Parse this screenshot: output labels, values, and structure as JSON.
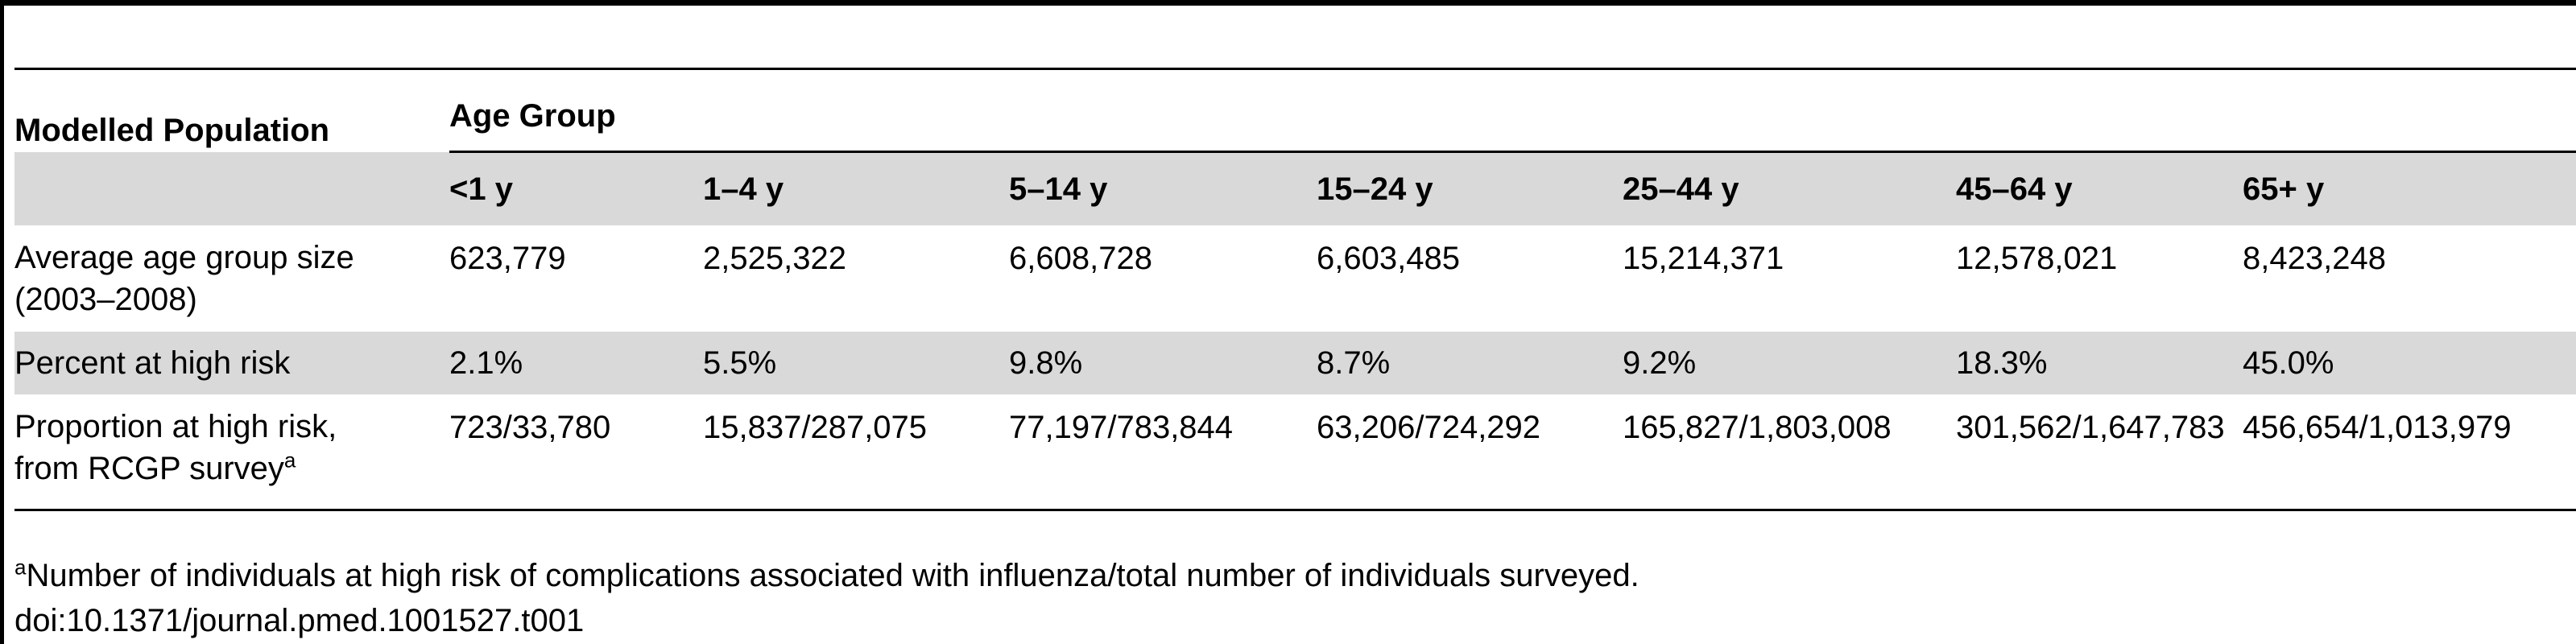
{
  "table": {
    "corner_label": "Modelled Population",
    "group_label": "Age Group",
    "age_groups": [
      "<1 y",
      "1–4 y",
      "5–14 y",
      "15–24 y",
      "25–44 y",
      "45–64 y",
      "65+ y"
    ],
    "rows": [
      {
        "label_line1": "Average age group size",
        "label_line2": "(2003–2008)",
        "values": [
          "623,779",
          "2,525,322",
          "6,608,728",
          "6,603,485",
          "15,214,371",
          "12,578,021",
          "8,423,248"
        ]
      },
      {
        "label_line1": "Percent at high risk",
        "values": [
          "2.1%",
          "5.5%",
          "9.8%",
          "8.7%",
          "9.2%",
          "18.3%",
          "45.0%"
        ]
      },
      {
        "label_line1": "Proportion at high risk,",
        "label_line2": "from RCGP survey",
        "label_sup": "a",
        "values": [
          "723/33,780",
          "15,837/287,075",
          "77,197/783,844",
          "63,206/724,292",
          "165,827/1,803,008",
          "301,562/1,647,783",
          "456,654/1,013,979"
        ]
      }
    ]
  },
  "footnote": {
    "marker": "a",
    "text": "Number of individuals at high risk of complications associated with influenza/total number of individuals surveyed."
  },
  "doi": "doi:10.1371/journal.pmed.1001527.t001"
}
